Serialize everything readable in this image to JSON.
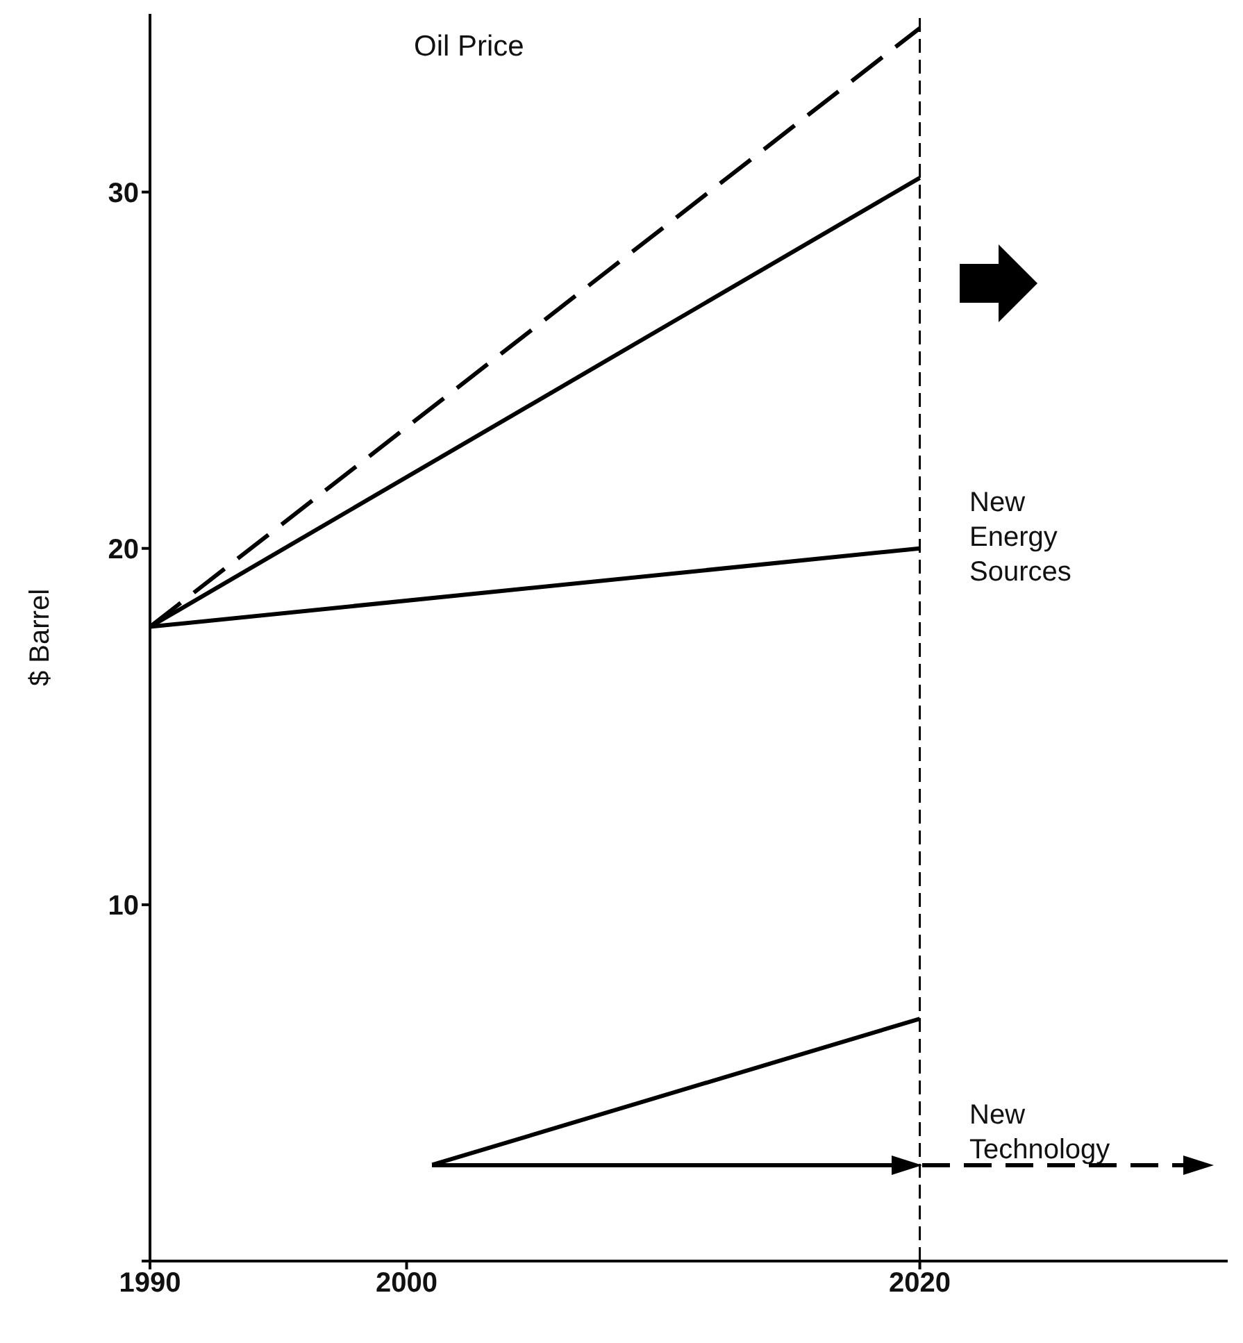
{
  "chart_data": {
    "type": "line",
    "title": "Oil Price",
    "ylabel": "$ Barrel",
    "xlim": [
      1990,
      2032
    ],
    "xticks": [
      1990,
      2000,
      2020
    ],
    "ylim": [
      0,
      35
    ],
    "yticks": [
      {
        "value": 0,
        "label": null
      },
      10,
      20,
      30
    ],
    "series": [
      {
        "color": "#000000",
        "x": [
          1990,
          2020
        ],
        "values": [
          17.8,
          34.6
        ],
        "line_style": "dashed"
      },
      {
        "color": "#000000",
        "x": [
          1990,
          2020
        ],
        "values": [
          17.8,
          30.4
        ],
        "line_style": "solid"
      },
      {
        "color": "#000000",
        "x": [
          1990,
          2020
        ],
        "values": [
          17.8,
          20.0
        ],
        "line_style": "solid"
      },
      {
        "color": "#000000",
        "x": [
          2001,
          2020
        ],
        "values": [
          2.7,
          6.8
        ],
        "line_style": "solid"
      }
    ],
    "ref_lines": [
      {
        "axis": "x",
        "value": 2020,
        "color": "#000000",
        "line_style": "dashed"
      }
    ],
    "annotations": [
      "New Energy Sources",
      "New Technology"
    ]
  }
}
